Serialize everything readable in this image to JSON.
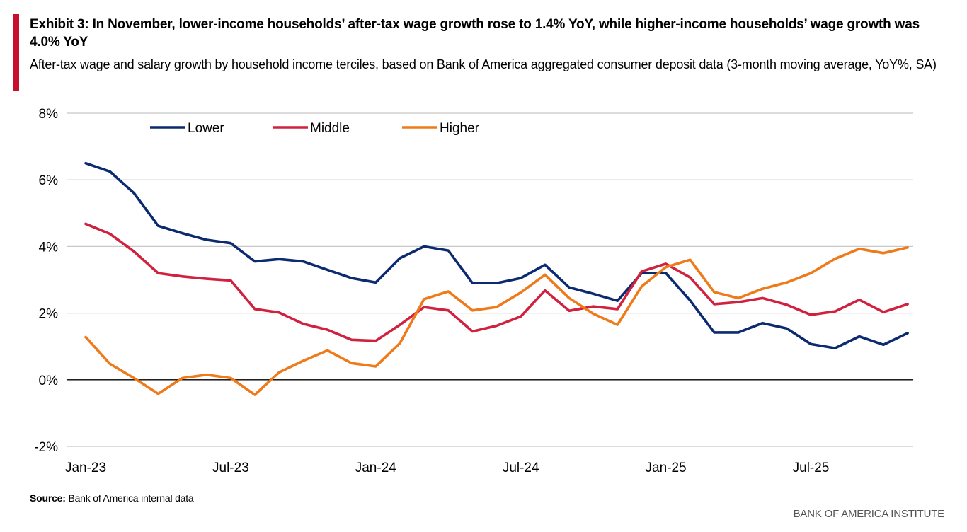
{
  "header": {
    "title": "Exhibit 3: In November, lower-income households’ after-tax wage growth rose to 1.4% YoY, while higher-income households’ wage growth was 4.0% YoY",
    "subtitle": "After-tax wage and salary growth by household income terciles, based on Bank of America aggregated consumer deposit data (3-month moving average, YoY%, SA)"
  },
  "footer": {
    "source_label": "Source:",
    "source_text": "Bank of America internal data",
    "brand": "BANK OF AMERICA INSTITUTE"
  },
  "colors": {
    "accent": "#c8102e",
    "lower": "#0b2a6f",
    "middle": "#d0213f",
    "higher": "#ee7a1a"
  },
  "chart_data": {
    "type": "line",
    "title": "Exhibit 3: In November, lower-income households’ after-tax wage growth rose to 1.4% YoY, while higher-income households’ wage growth was 4.0% YoY",
    "xlabel": "",
    "ylabel": "",
    "ylim": [
      -2,
      8
    ],
    "yticks": [
      -2,
      0,
      2,
      4,
      6,
      8
    ],
    "ytick_labels": [
      "-2%",
      "0%",
      "2%",
      "4%",
      "6%",
      "8%"
    ],
    "xtick_labels": [
      "Jan-23",
      "Jul-23",
      "Jan-24",
      "Jul-24",
      "Jan-25",
      "Jul-25"
    ],
    "xtick_index": [
      0,
      6,
      12,
      18,
      24,
      30
    ],
    "grid": true,
    "legend_position": "top-left",
    "x": [
      "Jan-23",
      "Feb-23",
      "Mar-23",
      "Apr-23",
      "May-23",
      "Jun-23",
      "Jul-23",
      "Aug-23",
      "Sep-23",
      "Oct-23",
      "Nov-23",
      "Dec-23",
      "Jan-24",
      "Feb-24",
      "Mar-24",
      "Apr-24",
      "May-24",
      "Jun-24",
      "Jul-24",
      "Aug-24",
      "Sep-24",
      "Oct-24",
      "Nov-24",
      "Dec-24",
      "Jan-25",
      "Feb-25",
      "Mar-25",
      "Apr-25",
      "May-25",
      "Jun-25",
      "Jul-25",
      "Aug-25",
      "Sep-25",
      "Oct-25",
      "Nov-25"
    ],
    "series": [
      {
        "name": "Lower",
        "color_key": "lower",
        "values": [
          6.5,
          6.25,
          5.6,
          4.62,
          4.4,
          4.2,
          4.1,
          3.55,
          3.62,
          3.55,
          3.3,
          3.05,
          2.92,
          3.65,
          4.0,
          3.88,
          2.9,
          2.9,
          3.05,
          3.45,
          2.77,
          2.58,
          2.37,
          3.2,
          3.2,
          2.38,
          1.42,
          1.42,
          1.7,
          1.54,
          1.07,
          0.95,
          1.3,
          1.05,
          1.4
        ]
      },
      {
        "name": "Middle",
        "color_key": "middle",
        "values": [
          4.68,
          4.38,
          3.85,
          3.2,
          3.1,
          3.03,
          2.98,
          2.12,
          2.02,
          1.68,
          1.5,
          1.2,
          1.17,
          1.65,
          2.18,
          2.08,
          1.45,
          1.62,
          1.9,
          2.68,
          2.07,
          2.2,
          2.12,
          3.25,
          3.48,
          3.07,
          2.27,
          2.33,
          2.45,
          2.25,
          1.95,
          2.05,
          2.4,
          2.03,
          2.27
        ]
      },
      {
        "name": "Higher",
        "color_key": "higher",
        "values": [
          1.28,
          0.48,
          0.05,
          -0.42,
          0.05,
          0.15,
          0.05,
          -0.45,
          0.22,
          0.57,
          0.88,
          0.5,
          0.4,
          1.1,
          2.42,
          2.65,
          2.08,
          2.18,
          2.62,
          3.15,
          2.45,
          1.98,
          1.65,
          2.8,
          3.38,
          3.6,
          2.63,
          2.45,
          2.73,
          2.92,
          3.2,
          3.63,
          3.93,
          3.8,
          3.97
        ]
      }
    ]
  }
}
